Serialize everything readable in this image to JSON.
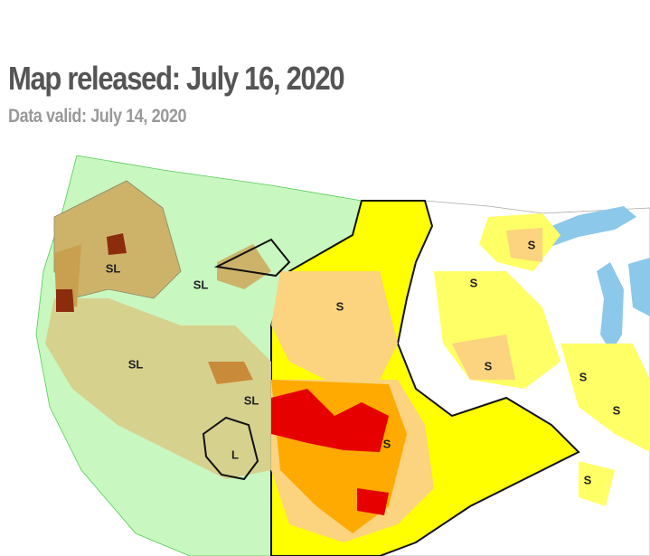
{
  "header": {
    "title": "Map released: July 16, 2020",
    "subtitle": "Data valid: July 14, 2020"
  },
  "map": {
    "labels": [
      "SL",
      "SL",
      "SL",
      "SL",
      "L",
      "S",
      "S",
      "S",
      "S",
      "S",
      "S",
      "S",
      "S"
    ]
  }
}
